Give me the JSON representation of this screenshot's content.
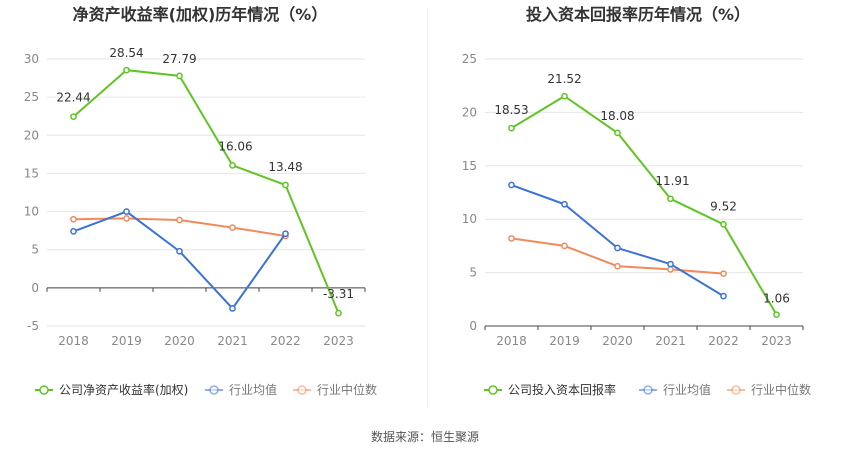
{
  "footer": {
    "source": "数据来源：恒生聚源"
  },
  "colors": {
    "company": "#5fc424",
    "industry_avg": "#3b72d6",
    "industry_median": "#f08a5d",
    "grid": "#e6e6e6",
    "axis_text": "#888888",
    "label_text": "#333333"
  },
  "chart_data": [
    {
      "type": "line",
      "title": "净资产收益率(加权)历年情况（%）",
      "xlabel": "",
      "ylabel": "",
      "categories": [
        "2018",
        "2019",
        "2020",
        "2021",
        "2022",
        "2023"
      ],
      "ylim": [
        -5,
        30
      ],
      "yticks": [
        -5,
        0,
        5,
        10,
        15,
        20,
        25,
        30
      ],
      "grid": true,
      "legend_position": "bottom-left",
      "series": [
        {
          "name": "公司净资产收益率(加权)",
          "key": "company",
          "values": [
            22.44,
            28.54,
            27.79,
            16.06,
            13.48,
            -3.31
          ],
          "labels": [
            "22.44",
            "28.54",
            "27.79",
            "16.06",
            "13.48",
            "-3.31"
          ]
        },
        {
          "name": "行业均值",
          "key": "industry_avg",
          "values": [
            7.4,
            10.0,
            4.8,
            -2.7,
            7.1,
            null
          ]
        },
        {
          "name": "行业中位数",
          "key": "industry_median",
          "values": [
            9.0,
            9.1,
            8.9,
            7.9,
            6.8,
            null
          ]
        }
      ]
    },
    {
      "type": "line",
      "title": "投入资本回报率历年情况（%）",
      "xlabel": "",
      "ylabel": "",
      "categories": [
        "2018",
        "2019",
        "2020",
        "2021",
        "2022",
        "2023"
      ],
      "ylim": [
        0,
        25
      ],
      "yticks": [
        0,
        5,
        10,
        15,
        20,
        25
      ],
      "grid": true,
      "legend_position": "bottom-left",
      "series": [
        {
          "name": "公司投入资本回报率",
          "key": "company",
          "values": [
            18.53,
            21.52,
            18.08,
            11.91,
            9.52,
            1.06
          ],
          "labels": [
            "18.53",
            "21.52",
            "18.08",
            "11.91",
            "9.52",
            "1.06"
          ]
        },
        {
          "name": "行业均值",
          "key": "industry_avg",
          "values": [
            13.2,
            11.4,
            7.3,
            5.8,
            2.8,
            null
          ]
        },
        {
          "name": "行业中位数",
          "key": "industry_median",
          "values": [
            8.2,
            7.5,
            5.6,
            5.3,
            4.9,
            null
          ]
        }
      ]
    }
  ]
}
